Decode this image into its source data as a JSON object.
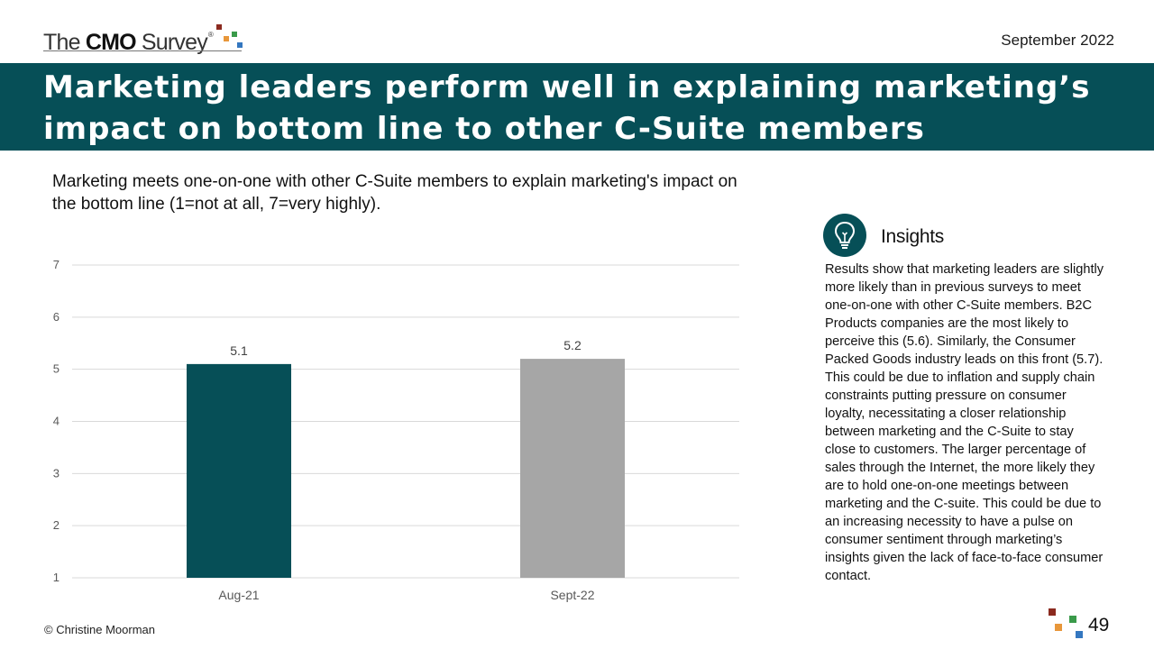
{
  "header": {
    "logo_prefix": "The ",
    "logo_brand": "CMO",
    "logo_suffix": " Survey",
    "logo_reg": "®",
    "date": "September 2022"
  },
  "title": "Marketing leaders perform well in explaining marketing’s impact on bottom line to other C-Suite members",
  "subtitle": "Marketing meets one-on-one with other C-Suite members to explain marketing's impact on the bottom line (1=not at all, 7=very highly).",
  "insights": {
    "heading": "Insights",
    "icon": "lightbulb-icon",
    "body": "Results show that marketing leaders are slightly more likely than in previous surveys to meet one-on-one with other C-Suite members. B2C Products companies are the most likely to perceive this (5.6). Similarly, the Consumer Packed Goods industry leads on this front (5.7). This could be due to inflation and supply chain constraints putting pressure on consumer loyalty, necessitating a closer relationship between marketing and the C-Suite to stay close to customers. The larger percentage of sales through the Internet, the more likely they are to hold one-on-one meetings between marketing and the C-suite. This could be due to an increasing necessity to have a pulse on consumer sentiment through marketing’s insights given the lack of face-to-face consumer contact."
  },
  "footer": {
    "copyright": "© Christine Moorman",
    "page_number": "49"
  },
  "colors": {
    "brand_teal": "#064f57",
    "bar_gray": "#a6a6a6",
    "square_red": "#8b2a1f",
    "square_orange": "#e8973a",
    "square_green": "#3a9a4a",
    "square_blue": "#3477c0"
  },
  "chart_data": {
    "type": "bar",
    "categories": [
      "Aug-21",
      "Sept-22"
    ],
    "values": [
      5.1,
      5.2
    ],
    "data_labels": [
      "5.1",
      "5.2"
    ],
    "bar_colors": [
      "#064f57",
      "#a6a6a6"
    ],
    "ylim": [
      1,
      7
    ],
    "yticks": [
      1,
      2,
      3,
      4,
      5,
      6,
      7
    ],
    "grid": true,
    "legend": false,
    "title": "",
    "xlabel": "",
    "ylabel": ""
  }
}
